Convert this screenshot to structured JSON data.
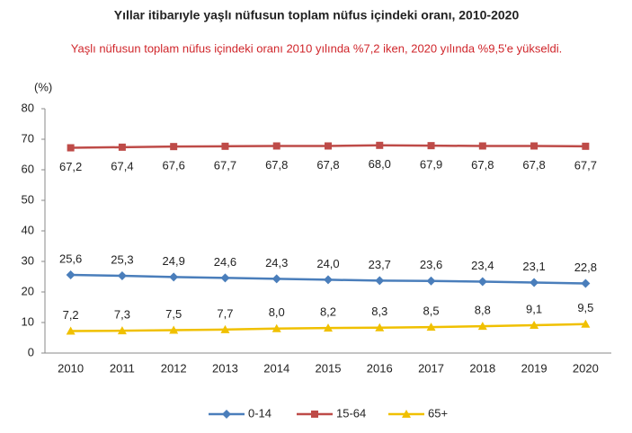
{
  "chart_data": {
    "type": "line",
    "title": "Yıllar itibarıyle yaşlı nüfusun toplam nüfus içindeki oranı, 2010-2020",
    "subtitle": "Yaşlı nüfusun toplam nüfus içindeki oranı 2010 yılında %7,2 iken, 2020 yılında %9,5'e yükseldi.",
    "y_label": "(%)",
    "categories": [
      "2010",
      "2011",
      "2012",
      "2013",
      "2014",
      "2015",
      "2016",
      "2017",
      "2018",
      "2019",
      "2020"
    ],
    "ylim": [
      0,
      80
    ],
    "yticks": [
      0,
      10,
      20,
      30,
      40,
      50,
      60,
      70,
      80
    ],
    "grid": false,
    "legend": "bottom",
    "series": [
      {
        "name": "0-14",
        "color": "#4a7ebb",
        "marker": "diamond",
        "label_position": "above",
        "values": [
          25.6,
          25.3,
          24.9,
          24.6,
          24.3,
          24.0,
          23.7,
          23.6,
          23.4,
          23.1,
          22.8
        ],
        "value_labels": [
          "25,6",
          "25,3",
          "24,9",
          "24,6",
          "24,3",
          "24,0",
          "23,7",
          "23,6",
          "23,4",
          "23,1",
          "22,8"
        ]
      },
      {
        "name": "15-64",
        "color": "#be4b48",
        "marker": "square",
        "label_position": "below",
        "values": [
          67.2,
          67.4,
          67.6,
          67.7,
          67.8,
          67.8,
          68.0,
          67.9,
          67.8,
          67.8,
          67.7
        ],
        "value_labels": [
          "67,2",
          "67,4",
          "67,6",
          "67,7",
          "67,8",
          "67,8",
          "68,0",
          "67,9",
          "67,8",
          "67,8",
          "67,7"
        ]
      },
      {
        "name": "65+",
        "color": "#f0c000",
        "marker": "triangle",
        "label_position": "above",
        "values": [
          7.2,
          7.3,
          7.5,
          7.7,
          8.0,
          8.2,
          8.3,
          8.5,
          8.8,
          9.1,
          9.5
        ],
        "value_labels": [
          "7,2",
          "7,3",
          "7,5",
          "7,7",
          "8,0",
          "8,2",
          "8,3",
          "8,5",
          "8,8",
          "9,1",
          "9,5"
        ]
      }
    ]
  }
}
